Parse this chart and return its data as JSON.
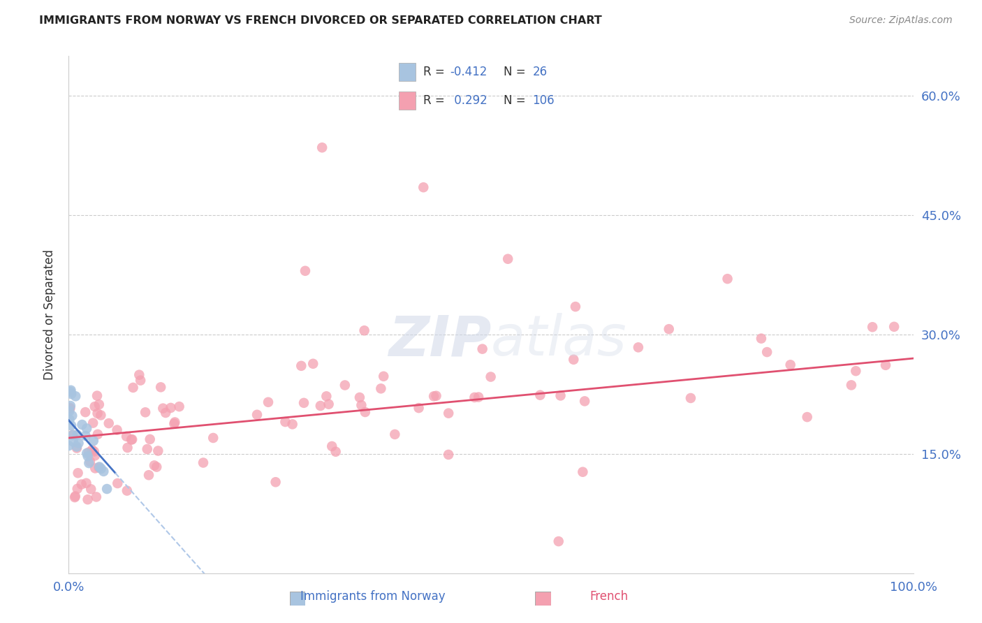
{
  "title": "IMMIGRANTS FROM NORWAY VS FRENCH DIVORCED OR SEPARATED CORRELATION CHART",
  "source": "Source: ZipAtlas.com",
  "ylabel": "Divorced or Separated",
  "xlabel_blue": "Immigrants from Norway",
  "xlabel_pink": "French",
  "xlim": [
    0.0,
    1.0
  ],
  "ylim": [
    0.0,
    0.65
  ],
  "yticks": [
    0.0,
    0.15,
    0.3,
    0.45,
    0.6
  ],
  "grid_color": "#cccccc",
  "background_color": "#ffffff",
  "blue_color": "#a8c4e0",
  "blue_line_color": "#4472c4",
  "blue_line_dashed_color": "#b0c8e8",
  "pink_color": "#f4a0b0",
  "pink_line_color": "#e05070",
  "R_blue": -0.412,
  "N_blue": 26,
  "R_pink": 0.292,
  "N_pink": 106,
  "tick_color": "#4472c4",
  "title_color": "#222222",
  "source_color": "#888888",
  "ylabel_color": "#333333",
  "watermark_color": "#d0d8e8"
}
